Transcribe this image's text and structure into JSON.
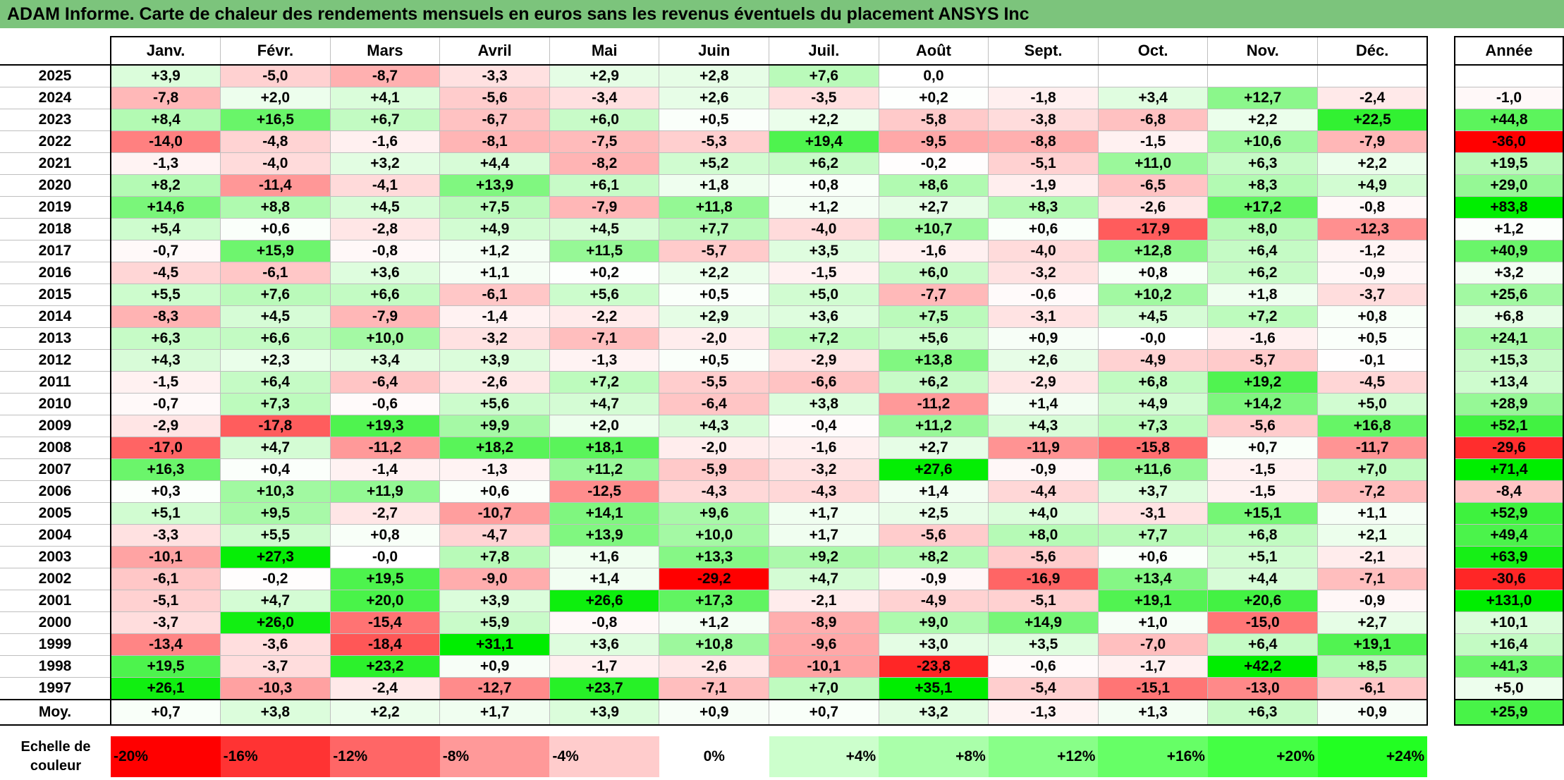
{
  "title": "ADAM Informe. Carte de chaleur des rendements mensuels en euros sans les revenus éventuels du placement ANSYS Inc",
  "chart_data": {
    "type": "heatmap",
    "title": "ADAM Informe. Carte de chaleur des rendements mensuels en euros sans les revenus éventuels du placement ANSYS Inc",
    "columns": [
      "Janv.",
      "Févr.",
      "Mars",
      "Avril",
      "Mai",
      "Juin",
      "Juil.",
      "Août",
      "Sept.",
      "Oct.",
      "Nov.",
      "Déc."
    ],
    "annual_header": "Année",
    "rows": [
      {
        "year": "2025",
        "values": [
          "+3,9",
          "-5,0",
          "-8,7",
          "-3,3",
          "+2,9",
          "+2,8",
          "+7,6",
          "0,0",
          "",
          "",
          "",
          ""
        ],
        "annual": ""
      },
      {
        "year": "2024",
        "values": [
          "-7,8",
          "+2,0",
          "+4,1",
          "-5,6",
          "-3,4",
          "+2,6",
          "-3,5",
          "+0,2",
          "-1,8",
          "+3,4",
          "+12,7",
          "-2,4"
        ],
        "annual": "-1,0"
      },
      {
        "year": "2023",
        "values": [
          "+8,4",
          "+16,5",
          "+6,7",
          "-6,7",
          "+6,0",
          "+0,5",
          "+2,2",
          "-5,8",
          "-3,8",
          "-6,8",
          "+2,2",
          "+22,5"
        ],
        "annual": "+44,8"
      },
      {
        "year": "2022",
        "values": [
          "-14,0",
          "-4,8",
          "-1,6",
          "-8,1",
          "-7,5",
          "-5,3",
          "+19,4",
          "-9,5",
          "-8,8",
          "-1,5",
          "+10,6",
          "-7,9"
        ],
        "annual": "-36,0"
      },
      {
        "year": "2021",
        "values": [
          "-1,3",
          "-4,0",
          "+3,2",
          "+4,4",
          "-8,2",
          "+5,2",
          "+6,2",
          "-0,2",
          "-5,1",
          "+11,0",
          "+6,3",
          "+2,2"
        ],
        "annual": "+19,5"
      },
      {
        "year": "2020",
        "values": [
          "+8,2",
          "-11,4",
          "-4,1",
          "+13,9",
          "+6,1",
          "+1,8",
          "+0,8",
          "+8,6",
          "-1,9",
          "-6,5",
          "+8,3",
          "+4,9"
        ],
        "annual": "+29,0"
      },
      {
        "year": "2019",
        "values": [
          "+14,6",
          "+8,8",
          "+4,5",
          "+7,5",
          "-7,9",
          "+11,8",
          "+1,2",
          "+2,7",
          "+8,3",
          "-2,6",
          "+17,2",
          "-0,8"
        ],
        "annual": "+83,8"
      },
      {
        "year": "2018",
        "values": [
          "+5,4",
          "+0,6",
          "-2,8",
          "+4,9",
          "+4,5",
          "+7,7",
          "-4,0",
          "+10,7",
          "+0,6",
          "-17,9",
          "+8,0",
          "-12,3"
        ],
        "annual": "+1,2"
      },
      {
        "year": "2017",
        "values": [
          "-0,7",
          "+15,9",
          "-0,8",
          "+1,2",
          "+11,5",
          "-5,7",
          "+3,5",
          "-1,6",
          "-4,0",
          "+12,8",
          "+6,4",
          "-1,2"
        ],
        "annual": "+40,9"
      },
      {
        "year": "2016",
        "values": [
          "-4,5",
          "-6,1",
          "+3,6",
          "+1,1",
          "+0,2",
          "+2,2",
          "-1,5",
          "+6,0",
          "-3,2",
          "+0,8",
          "+6,2",
          "-0,9"
        ],
        "annual": "+3,2"
      },
      {
        "year": "2015",
        "values": [
          "+5,5",
          "+7,6",
          "+6,6",
          "-6,1",
          "+5,6",
          "+0,5",
          "+5,0",
          "-7,7",
          "-0,6",
          "+10,2",
          "+1,8",
          "-3,7"
        ],
        "annual": "+25,6"
      },
      {
        "year": "2014",
        "values": [
          "-8,3",
          "+4,5",
          "-7,9",
          "-1,4",
          "-2,2",
          "+2,9",
          "+3,6",
          "+7,5",
          "-3,1",
          "+4,5",
          "+7,2",
          "+0,8"
        ],
        "annual": "+6,8"
      },
      {
        "year": "2013",
        "values": [
          "+6,3",
          "+6,6",
          "+10,0",
          "-3,2",
          "-7,1",
          "-2,0",
          "+7,2",
          "+5,6",
          "+0,9",
          "-0,0",
          "-1,6",
          "+0,5"
        ],
        "annual": "+24,1"
      },
      {
        "year": "2012",
        "values": [
          "+4,3",
          "+2,3",
          "+3,4",
          "+3,9",
          "-1,3",
          "+0,5",
          "-2,9",
          "+13,8",
          "+2,6",
          "-4,9",
          "-5,7",
          "-0,1"
        ],
        "annual": "+15,3"
      },
      {
        "year": "2011",
        "values": [
          "-1,5",
          "+6,4",
          "-6,4",
          "-2,6",
          "+7,2",
          "-5,5",
          "-6,6",
          "+6,2",
          "-2,9",
          "+6,8",
          "+19,2",
          "-4,5"
        ],
        "annual": "+13,4"
      },
      {
        "year": "2010",
        "values": [
          "-0,7",
          "+7,3",
          "-0,6",
          "+5,6",
          "+4,7",
          "-6,4",
          "+3,8",
          "-11,2",
          "+1,4",
          "+4,9",
          "+14,2",
          "+5,0"
        ],
        "annual": "+28,9"
      },
      {
        "year": "2009",
        "values": [
          "-2,9",
          "-17,8",
          "+19,3",
          "+9,9",
          "+2,0",
          "+4,3",
          "-0,4",
          "+11,2",
          "+4,3",
          "+7,3",
          "-5,6",
          "+16,8"
        ],
        "annual": "+52,1"
      },
      {
        "year": "2008",
        "values": [
          "-17,0",
          "+4,7",
          "-11,2",
          "+18,2",
          "+18,1",
          "-2,0",
          "-1,6",
          "+2,7",
          "-11,9",
          "-15,8",
          "+0,7",
          "-11,7"
        ],
        "annual": "-29,6"
      },
      {
        "year": "2007",
        "values": [
          "+16,3",
          "+0,4",
          "-1,4",
          "-1,3",
          "+11,2",
          "-5,9",
          "-3,2",
          "+27,6",
          "-0,9",
          "+11,6",
          "-1,5",
          "+7,0"
        ],
        "annual": "+71,4"
      },
      {
        "year": "2006",
        "values": [
          "+0,3",
          "+10,3",
          "+11,9",
          "+0,6",
          "-12,5",
          "-4,3",
          "-4,3",
          "+1,4",
          "-4,4",
          "+3,7",
          "-1,5",
          "-7,2"
        ],
        "annual": "-8,4"
      },
      {
        "year": "2005",
        "values": [
          "+5,1",
          "+9,5",
          "-2,7",
          "-10,7",
          "+14,1",
          "+9,6",
          "+1,7",
          "+2,5",
          "+4,0",
          "-3,1",
          "+15,1",
          "+1,1"
        ],
        "annual": "+52,9"
      },
      {
        "year": "2004",
        "values": [
          "-3,3",
          "+5,5",
          "+0,8",
          "-4,7",
          "+13,9",
          "+10,0",
          "+1,7",
          "-5,6",
          "+8,0",
          "+7,7",
          "+6,8",
          "+2,1"
        ],
        "annual": "+49,4"
      },
      {
        "year": "2003",
        "values": [
          "-10,1",
          "+27,3",
          "-0,0",
          "+7,8",
          "+1,6",
          "+13,3",
          "+9,2",
          "+8,2",
          "-5,6",
          "+0,6",
          "+5,1",
          "-2,1"
        ],
        "annual": "+63,9"
      },
      {
        "year": "2002",
        "values": [
          "-6,1",
          "-0,2",
          "+19,5",
          "-9,0",
          "+1,4",
          "-29,2",
          "+4,7",
          "-0,9",
          "-16,9",
          "+13,4",
          "+4,4",
          "-7,1"
        ],
        "annual": "-30,6"
      },
      {
        "year": "2001",
        "values": [
          "-5,1",
          "+4,7",
          "+20,0",
          "+3,9",
          "+26,6",
          "+17,3",
          "-2,1",
          "-4,9",
          "-5,1",
          "+19,1",
          "+20,6",
          "-0,9"
        ],
        "annual": "+131,0"
      },
      {
        "year": "2000",
        "values": [
          "-3,7",
          "+26,0",
          "-15,4",
          "+5,9",
          "-0,8",
          "+1,2",
          "-8,9",
          "+9,0",
          "+14,9",
          "+1,0",
          "-15,0",
          "+2,7"
        ],
        "annual": "+10,1"
      },
      {
        "year": "1999",
        "values": [
          "-13,4",
          "-3,6",
          "-18,4",
          "+31,1",
          "+3,6",
          "+10,8",
          "-9,6",
          "+3,0",
          "+3,5",
          "-7,0",
          "+6,4",
          "+19,1"
        ],
        "annual": "+16,4"
      },
      {
        "year": "1998",
        "values": [
          "+19,5",
          "-3,7",
          "+23,2",
          "+0,9",
          "-1,7",
          "-2,6",
          "-10,1",
          "-23,8",
          "-0,6",
          "-1,7",
          "+42,2",
          "+8,5"
        ],
        "annual": "+41,3"
      },
      {
        "year": "1997",
        "values": [
          "+26,1",
          "-10,3",
          "-2,4",
          "-12,7",
          "+23,7",
          "-7,1",
          "+7,0",
          "+35,1",
          "-5,4",
          "-15,1",
          "-13,0",
          "-6,1"
        ],
        "annual": "+5,0"
      }
    ],
    "average": {
      "label": "Moy.",
      "values": [
        "+0,7",
        "+3,8",
        "+2,2",
        "+1,7",
        "+3,9",
        "+0,9",
        "+0,7",
        "+3,2",
        "-1,3",
        "+1,3",
        "+6,3",
        "+0,9"
      ],
      "annual": "+25,9"
    },
    "scale": {
      "label_line1": "Echelle de",
      "label_line2": "couleur",
      "items": [
        {
          "label": "-20%",
          "color": "#ff0000"
        },
        {
          "label": "-16%",
          "color": "#ff3333"
        },
        {
          "label": "-12%",
          "color": "#ff6666"
        },
        {
          "label": "-8%",
          "color": "#ff9999"
        },
        {
          "label": "-4%",
          "color": "#ffcccc"
        },
        {
          "label": "0%",
          "color": "#ffffff"
        },
        {
          "label": "+4%",
          "color": "#ccffcc"
        },
        {
          "label": "+8%",
          "color": "#aaffaa"
        },
        {
          "label": "+12%",
          "color": "#88ff88"
        },
        {
          "label": "+16%",
          "color": "#66ff66"
        },
        {
          "label": "+20%",
          "color": "#44ff44"
        },
        {
          "label": "+24%",
          "color": "#22ff22"
        }
      ]
    }
  }
}
